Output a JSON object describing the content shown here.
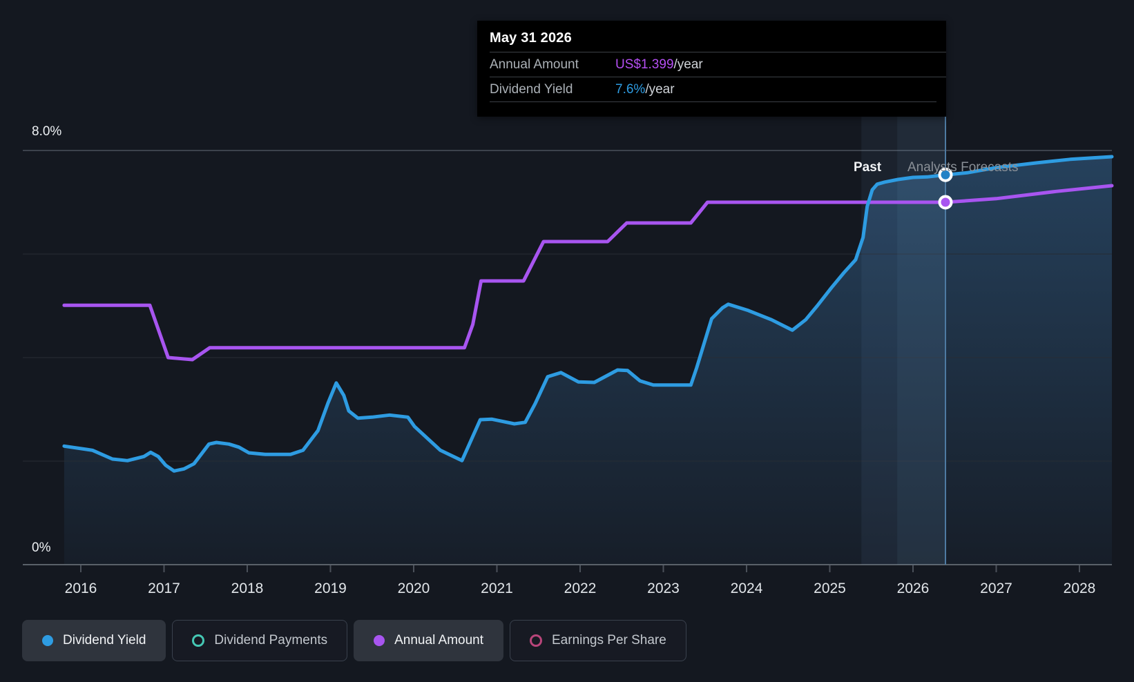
{
  "page": {
    "background": "#141820"
  },
  "tooltip": {
    "date": "May 31 2026",
    "rows": [
      {
        "label": "Annual Amount",
        "value": "US$1.399",
        "suffix": "/year",
        "color": "#b44ff2"
      },
      {
        "label": "Dividend Yield",
        "value": "7.6%",
        "suffix": "/year",
        "color": "#2e9ce2"
      }
    ]
  },
  "annotations": {
    "past": "Past",
    "forecasts": "Analysts Forecasts"
  },
  "y_axis": {
    "top_label": "8.0%",
    "bottom_label": "0%"
  },
  "legend": [
    {
      "label": "Dividend Yield",
      "icon": "filled-dot",
      "color": "#2e9ce2",
      "active": true
    },
    {
      "label": "Dividend Payments",
      "icon": "ring",
      "color": "#45c8b4",
      "active": false
    },
    {
      "label": "Annual Amount",
      "icon": "filled-dot",
      "color": "#a855f0",
      "active": true
    },
    {
      "label": "Earnings Per Share",
      "icon": "ring",
      "color": "#b8457a",
      "active": false
    }
  ],
  "chart_data": {
    "type": "line",
    "title": "Dividend history and forecast",
    "x_axis": {
      "ticks": [
        2016,
        2017,
        2018,
        2019,
        2020,
        2021,
        2022,
        2023,
        2024,
        2025,
        2026,
        2027,
        2028
      ],
      "range": [
        2015.8,
        2028.4
      ]
    },
    "y_axis": {
      "unit": "%",
      "range": [
        0,
        8
      ],
      "gridlines_pct": [
        0,
        2,
        4,
        6,
        8
      ],
      "labeled_ticks": [
        "0%",
        "8.0%"
      ]
    },
    "forecast_divider_year": 2025.38,
    "hover": {
      "date": "May 31 2026",
      "cursor_year": 2026.42,
      "band_start_year": 2025.81
    },
    "colors": {
      "grid_major": "#4b515a",
      "grid_minor": "#272c34",
      "axis": "#5a6169",
      "crosshair": "#4e7ba3",
      "band": "#7aaede",
      "area_fill": "#3e7ab0"
    },
    "series": [
      {
        "name": "Dividend Yield",
        "color": "#2e9ce2",
        "marker_fill": "#2382c6",
        "unit": "%",
        "area_fill": true,
        "value_at_cursor": "7.6%/year",
        "points": [
          [
            2015.8,
            2.29
          ],
          [
            2016.14,
            2.21
          ],
          [
            2016.38,
            2.04
          ],
          [
            2016.56,
            2.01
          ],
          [
            2016.76,
            2.09
          ],
          [
            2016.84,
            2.17
          ],
          [
            2016.93,
            2.09
          ],
          [
            2017.02,
            1.92
          ],
          [
            2017.12,
            1.81
          ],
          [
            2017.24,
            1.85
          ],
          [
            2017.36,
            1.95
          ],
          [
            2017.54,
            2.33
          ],
          [
            2017.63,
            2.36
          ],
          [
            2017.78,
            2.33
          ],
          [
            2017.9,
            2.27
          ],
          [
            2018.02,
            2.16
          ],
          [
            2018.22,
            2.13
          ],
          [
            2018.52,
            2.13
          ],
          [
            2018.67,
            2.21
          ],
          [
            2018.85,
            2.59
          ],
          [
            2018.97,
            3.12
          ],
          [
            2019.07,
            3.51
          ],
          [
            2019.16,
            3.27
          ],
          [
            2019.22,
            2.97
          ],
          [
            2019.33,
            2.83
          ],
          [
            2019.5,
            2.85
          ],
          [
            2019.71,
            2.89
          ],
          [
            2019.93,
            2.85
          ],
          [
            2020.01,
            2.67
          ],
          [
            2020.32,
            2.21
          ],
          [
            2020.58,
            2.01
          ],
          [
            2020.8,
            2.8
          ],
          [
            2020.94,
            2.81
          ],
          [
            2021.21,
            2.72
          ],
          [
            2021.34,
            2.75
          ],
          [
            2021.46,
            3.11
          ],
          [
            2021.61,
            3.63
          ],
          [
            2021.77,
            3.71
          ],
          [
            2021.98,
            3.53
          ],
          [
            2022.17,
            3.52
          ],
          [
            2022.45,
            3.76
          ],
          [
            2022.57,
            3.75
          ],
          [
            2022.72,
            3.55
          ],
          [
            2022.88,
            3.47
          ],
          [
            2023.33,
            3.47
          ],
          [
            2023.4,
            3.8
          ],
          [
            2023.58,
            4.75
          ],
          [
            2023.71,
            4.96
          ],
          [
            2023.78,
            5.03
          ],
          [
            2024.02,
            4.91
          ],
          [
            2024.3,
            4.73
          ],
          [
            2024.55,
            4.53
          ],
          [
            2024.71,
            4.73
          ],
          [
            2024.85,
            5.0
          ],
          [
            2025.02,
            5.35
          ],
          [
            2025.17,
            5.64
          ],
          [
            2025.31,
            5.89
          ],
          [
            2025.4,
            6.32
          ],
          [
            2025.45,
            6.92
          ],
          [
            2025.51,
            7.24
          ],
          [
            2025.57,
            7.35
          ],
          [
            2025.66,
            7.39
          ],
          [
            2025.82,
            7.44
          ],
          [
            2026.0,
            7.48
          ],
          [
            2026.17,
            7.49
          ],
          [
            2026.39,
            7.53
          ],
          [
            2026.65,
            7.57
          ],
          [
            2027.0,
            7.67
          ],
          [
            2027.48,
            7.76
          ],
          [
            2027.89,
            7.83
          ],
          [
            2028.39,
            7.88
          ]
        ]
      },
      {
        "name": "Annual Amount",
        "color": "#a855f0",
        "marker_fill": "#a855f0",
        "unit": "US$/year (own axis hidden; values are plotted position on the yield % scale)",
        "area_fill": false,
        "value_at_cursor": "US$1.399/year",
        "points": [
          [
            2015.8,
            5.01
          ],
          [
            2016.83,
            5.01
          ],
          [
            2017.05,
            4.0
          ],
          [
            2017.34,
            3.96
          ],
          [
            2017.55,
            4.19
          ],
          [
            2020.61,
            4.19
          ],
          [
            2020.71,
            4.64
          ],
          [
            2020.81,
            5.48
          ],
          [
            2021.32,
            5.48
          ],
          [
            2021.56,
            6.24
          ],
          [
            2022.33,
            6.24
          ],
          [
            2022.56,
            6.6
          ],
          [
            2023.33,
            6.6
          ],
          [
            2023.53,
            7.0
          ],
          [
            2026.0,
            7.0
          ],
          [
            2026.39,
            7.0
          ],
          [
            2027.0,
            7.07
          ],
          [
            2027.72,
            7.21
          ],
          [
            2028.39,
            7.32
          ]
        ]
      }
    ]
  }
}
